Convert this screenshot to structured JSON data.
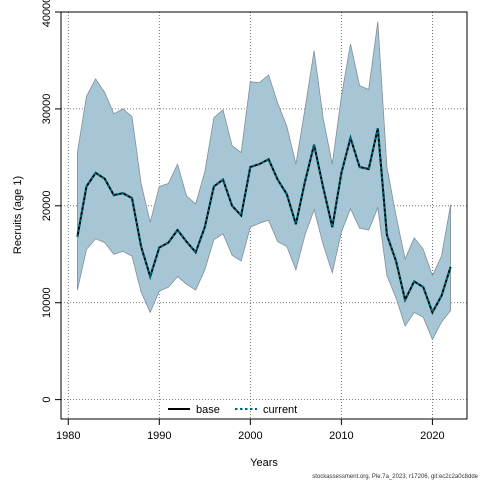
{
  "chart_data": {
    "type": "line",
    "xlabel": "Years",
    "ylabel": "Recruits (age 1)",
    "xlim": [
      1979.2,
      2023.8
    ],
    "ylim": [
      -2000,
      40000
    ],
    "x_ticks": [
      1980,
      1990,
      2000,
      2010,
      2020
    ],
    "x_tick_labels": [
      "1980",
      "1990",
      "2000",
      "2010",
      "2020"
    ],
    "y_ticks": [
      0,
      10000,
      20000,
      30000,
      40000
    ],
    "y_tick_labels": [
      "0",
      "10000",
      "20000",
      "30000",
      "40000"
    ],
    "grid": true,
    "legend_position": "bottom-center",
    "band_color": "#a6c6d6",
    "band_edge_color": "#7f8f99",
    "years": [
      1981,
      1982,
      1983,
      1984,
      1985,
      1986,
      1987,
      1988,
      1989,
      1990,
      1991,
      1992,
      1993,
      1994,
      1995,
      1996,
      1997,
      1998,
      1999,
      2000,
      2001,
      2002,
      2003,
      2004,
      2005,
      2006,
      2007,
      2008,
      2009,
      2010,
      2011,
      2012,
      2013,
      2014,
      2015,
      2016,
      2017,
      2018,
      2019,
      2020,
      2021,
      2022
    ],
    "band_upper": [
      25500,
      31300,
      33100,
      31700,
      29500,
      30000,
      29200,
      22300,
      18300,
      22000,
      22300,
      24300,
      21000,
      20200,
      23500,
      29100,
      29900,
      26200,
      25500,
      32800,
      32700,
      33500,
      30600,
      28200,
      24300,
      30000,
      36000,
      29000,
      24300,
      31300,
      36700,
      32400,
      32000,
      39000,
      24000,
      19000,
      14500,
      16700,
      15500,
      12800,
      14800,
      20100
    ],
    "band_lower": [
      11300,
      15500,
      16600,
      16200,
      15000,
      15300,
      14800,
      11100,
      9000,
      11200,
      11600,
      12700,
      11900,
      11300,
      13400,
      16500,
      17100,
      14900,
      14300,
      17800,
      18200,
      18500,
      16300,
      15800,
      13400,
      17000,
      19600,
      16000,
      13100,
      17300,
      19700,
      17700,
      17500,
      19800,
      12800,
      10500,
      7600,
      9000,
      8500,
      6200,
      8000,
      9200
    ],
    "series": [
      {
        "name": "base",
        "color": "#000000",
        "style": "solid",
        "values": [
          16800,
          22000,
          23400,
          22800,
          21100,
          21300,
          20800,
          15800,
          12700,
          15700,
          16200,
          17500,
          16300,
          15200,
          17800,
          22000,
          22700,
          20000,
          19000,
          24000,
          24300,
          24800,
          22700,
          21200,
          18100,
          22500,
          26300,
          21900,
          17800,
          23400,
          27000,
          24000,
          23800,
          28000,
          17000,
          14300,
          10300,
          12200,
          11600,
          9000,
          10700,
          13700
        ]
      },
      {
        "name": "current",
        "color": "#00687a",
        "style": "dotted",
        "values": [
          16800,
          22000,
          23400,
          22800,
          21100,
          21300,
          20800,
          15800,
          12700,
          15700,
          16200,
          17500,
          16300,
          15200,
          17800,
          22000,
          22700,
          20000,
          19000,
          24000,
          24300,
          24800,
          22700,
          21200,
          18100,
          22500,
          26300,
          21900,
          17800,
          23400,
          27000,
          24000,
          23800,
          28000,
          17000,
          14300,
          10300,
          12200,
          11600,
          9000,
          10700,
          13700
        ]
      }
    ]
  },
  "footer": "stockassessment.org, Ple.7a_2023, r17206, git:ec2c2a0c8dde"
}
